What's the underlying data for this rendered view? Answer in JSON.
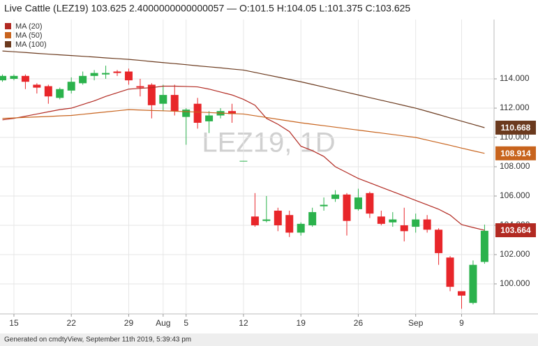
{
  "chart_data": {
    "type": "candlestick",
    "title": "Live Cattle (LEZ19) 103.625 2.4000000000000057 — O:101.5 H:104.05 L:101.375 C:103.625",
    "watermark": "LEZ19, 1D",
    "footer": "Generated on cmdtyView, September 11th 2019, 5:39:43 pm",
    "categories": [
      null,
      "15",
      null,
      null,
      null,
      null,
      "22",
      null,
      null,
      null,
      null,
      "29",
      null,
      null,
      "Aug",
      null,
      "5",
      null,
      null,
      null,
      null,
      "12",
      null,
      null,
      null,
      null,
      "19",
      null,
      null,
      null,
      null,
      "26",
      null,
      null,
      null,
      null,
      "Sep",
      null,
      null,
      null,
      "9",
      null,
      null
    ],
    "ohlc": {
      "up_color": "#2bb24c",
      "down_color": "#e8262a",
      "open": [
        113.9,
        114.0,
        114.2,
        113.6,
        113.5,
        112.7,
        113.2,
        113.7,
        114.2,
        114.3,
        114.5,
        114.5,
        113.5,
        113.6,
        112.3,
        112.9,
        111.4,
        112.3,
        111.1,
        111.5,
        111.8,
        108.4,
        104.6,
        104.3,
        105.0,
        104.7,
        103.5,
        104.0,
        105.3,
        105.8,
        106.1,
        105.1,
        106.2,
        104.6,
        104.2,
        104.0,
        103.9,
        104.4,
        103.7,
        101.8,
        99.5,
        98.7,
        101.5
      ],
      "high": [
        114.3,
        114.3,
        114.3,
        113.7,
        113.6,
        113.4,
        114.1,
        114.5,
        114.6,
        114.9,
        114.6,
        114.7,
        114.0,
        113.7,
        113.6,
        113.6,
        112.0,
        112.7,
        111.8,
        112.0,
        112.3,
        108.4,
        106.2,
        106.0,
        105.2,
        105.0,
        104.2,
        105.2,
        105.9,
        106.4,
        106.2,
        106.5,
        106.3,
        105.0,
        104.9,
        105.2,
        104.8,
        104.7,
        103.8,
        101.9,
        99.5,
        101.6,
        104.05
      ],
      "low": [
        113.8,
        113.9,
        113.3,
        113.0,
        112.3,
        112.6,
        113.0,
        113.6,
        113.9,
        114.0,
        114.2,
        113.6,
        112.8,
        111.3,
        111.8,
        111.5,
        109.5,
        110.6,
        110.3,
        111.3,
        111.0,
        108.4,
        103.9,
        104.2,
        103.6,
        103.2,
        103.3,
        103.9,
        105.0,
        105.6,
        103.3,
        105.0,
        104.5,
        104.0,
        103.9,
        102.9,
        103.5,
        103.5,
        101.3,
        99.5,
        98.3,
        98.6,
        101.375
      ],
      "close": [
        114.2,
        114.2,
        113.8,
        113.4,
        112.8,
        113.3,
        113.8,
        114.2,
        114.4,
        114.4,
        114.4,
        113.9,
        113.4,
        112.2,
        112.9,
        111.8,
        111.9,
        111.0,
        111.5,
        111.8,
        111.6,
        108.4,
        104.0,
        104.4,
        104.0,
        103.5,
        104.1,
        104.9,
        105.4,
        106.1,
        104.3,
        105.9,
        104.8,
        104.1,
        104.4,
        103.6,
        104.4,
        103.7,
        102.1,
        99.8,
        99.2,
        101.3,
        103.625
      ]
    },
    "series": [
      {
        "name": "MA (20)",
        "color": "#b22a22",
        "values": [
          111.2,
          111.3,
          111.45,
          111.6,
          111.75,
          111.9,
          112.0,
          112.25,
          112.5,
          112.8,
          113.05,
          113.3,
          113.35,
          113.4,
          113.5,
          113.5,
          113.48,
          113.45,
          113.3,
          113.1,
          112.9,
          112.6,
          112.2,
          111.3,
          110.9,
          110.4,
          109.4,
          109.1,
          108.7,
          108.0,
          107.6,
          107.2,
          106.9,
          106.6,
          106.3,
          106.0,
          105.7,
          105.4,
          105.1,
          104.7,
          104.05,
          103.85,
          103.664
        ]
      },
      {
        "name": "MA (50)",
        "color": "#c8641e",
        "values": [
          111.3,
          111.33,
          111.37,
          111.4,
          111.43,
          111.47,
          111.5,
          111.58,
          111.66,
          111.74,
          111.82,
          111.9,
          111.87,
          111.84,
          111.82,
          111.79,
          111.76,
          111.73,
          111.7,
          111.66,
          111.63,
          111.6,
          111.48,
          111.36,
          111.24,
          111.12,
          111.0,
          110.9,
          110.8,
          110.7,
          110.6,
          110.5,
          110.4,
          110.3,
          110.2,
          110.1,
          110.0,
          109.82,
          109.64,
          109.46,
          109.27,
          109.09,
          108.914
        ]
      },
      {
        "name": "MA (100)",
        "color": "#6b3a1e",
        "values": [
          115.9,
          115.85,
          115.8,
          115.74,
          115.69,
          115.64,
          115.59,
          115.54,
          115.49,
          115.43,
          115.38,
          115.33,
          115.26,
          115.18,
          115.11,
          115.04,
          114.97,
          114.89,
          114.82,
          114.75,
          114.67,
          114.6,
          114.44,
          114.28,
          114.12,
          113.96,
          113.8,
          113.62,
          113.44,
          113.26,
          113.08,
          112.9,
          112.72,
          112.54,
          112.36,
          112.18,
          112.0,
          111.78,
          111.56,
          111.33,
          111.11,
          110.89,
          110.668
        ]
      }
    ],
    "ylim": [
      97.95,
      118.05
    ],
    "yticks": [
      {
        "value": 100,
        "label": "100.000"
      },
      {
        "value": 102,
        "label": "102.000"
      },
      {
        "value": 104,
        "label": "104.000"
      },
      {
        "value": 106,
        "label": "106.000"
      },
      {
        "value": 108,
        "label": "108.000"
      },
      {
        "value": 110,
        "label": "110.000"
      },
      {
        "value": 112,
        "label": "112.000"
      },
      {
        "value": 114,
        "label": "114.000"
      }
    ],
    "grid": true
  }
}
